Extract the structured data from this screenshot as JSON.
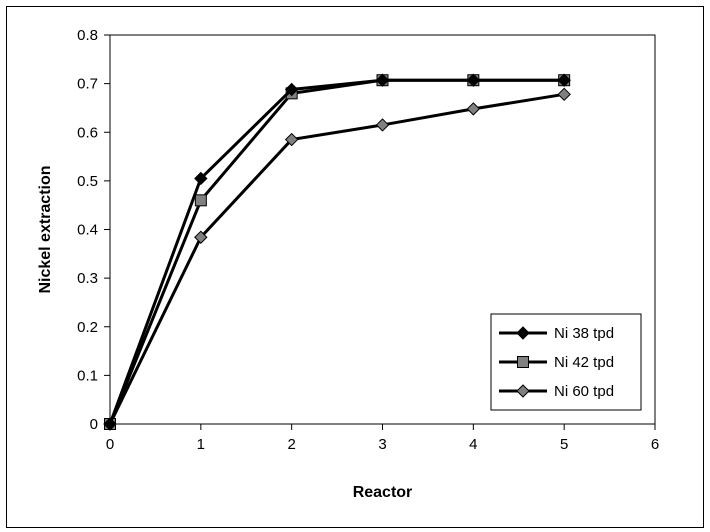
{
  "chart_data": {
    "type": "line",
    "xlabel": "Reactor",
    "ylabel": "Nickel extraction",
    "xlim": [
      0,
      6
    ],
    "ylim": [
      0,
      0.8
    ],
    "xticks": [
      "0",
      "1",
      "2",
      "3",
      "4",
      "5",
      "6"
    ],
    "yticks": [
      "0",
      "0.1",
      "0.2",
      "0.3",
      "0.4",
      "0.5",
      "0.6",
      "0.7",
      "0.8"
    ],
    "grid": false,
    "legend_position": "bottom-right",
    "series": [
      {
        "name": "Ni 38 tpd",
        "marker": "diamond",
        "color": "#000000",
        "x": [
          0,
          1,
          2,
          3,
          4,
          5
        ],
        "y": [
          0,
          0.505,
          0.688,
          0.707,
          0.707,
          0.707
        ]
      },
      {
        "name": "Ni 42 tpd",
        "marker": "square",
        "color": "#808080",
        "x": [
          0,
          1,
          2,
          3,
          4,
          5
        ],
        "y": [
          0,
          0.46,
          0.68,
          0.707,
          0.707,
          0.707
        ]
      },
      {
        "name": "Ni 60 tpd",
        "marker": "diamond",
        "color": "#808080",
        "x": [
          0,
          1,
          2,
          3,
          4,
          5
        ],
        "y": [
          0,
          0.384,
          0.585,
          0.615,
          0.648,
          0.678
        ]
      }
    ]
  }
}
